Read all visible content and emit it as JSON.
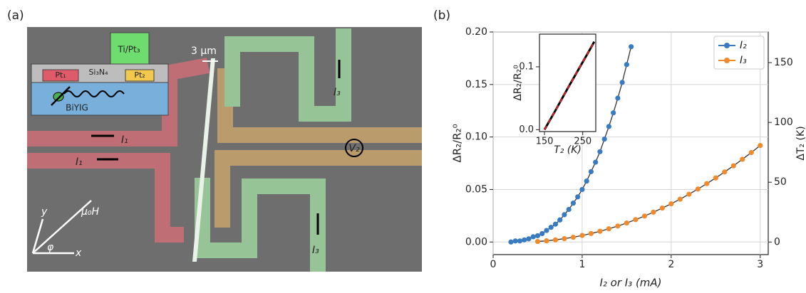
{
  "panel_a": {
    "label": "(a)",
    "labels": [
      "Ti/Pt₃",
      "3 µm",
      "Si₃N₄",
      "Pt₁",
      "Pt₂",
      "BiYIG",
      "I₁",
      "I₁",
      "I₃",
      "I₃",
      "V₂",
      "y",
      "x",
      "φ",
      "µ₀H"
    ]
  },
  "panel_b": {
    "label": "(b)"
  },
  "chart_data": [
    {
      "type": "scatter",
      "xlabel": "I₂ or I₃ (mA)",
      "ylabel": "ΔR₂/R₂⁰",
      "y2label": "ΔT₂ (K)",
      "xlim": [
        0,
        3.09
      ],
      "xticks": [
        0,
        1,
        2,
        3
      ],
      "ylim": [
        -0.012,
        0.2
      ],
      "yticks": [
        {
          "value": 0,
          "label": "0.00"
        },
        {
          "value": 0.05,
          "label": "0.05"
        },
        {
          "value": 0.1,
          "label": "0.10"
        },
        {
          "value": 0.15,
          "label": "0.15"
        },
        {
          "value": 0.2,
          "label": "0.20"
        }
      ],
      "y2lim": [
        -10.5,
        175.6
      ],
      "y2ticks": [
        0,
        50,
        100,
        150
      ],
      "grid": true,
      "legend": "upper right",
      "line_color": "#333333",
      "series": [
        {
          "name": "I₂",
          "color": "#3a7bbf",
          "x": [
            0.2,
            0.25,
            0.3,
            0.35,
            0.4,
            0.45,
            0.5,
            0.55,
            0.6,
            0.65,
            0.7,
            0.75,
            0.8,
            0.85,
            0.9,
            0.95,
            1.0,
            1.05,
            1.1,
            1.15,
            1.2,
            1.25,
            1.3,
            1.35,
            1.4,
            1.45,
            1.5,
            1.55
          ],
          "values": [
            0.0,
            0.001,
            0.001,
            0.002,
            0.003,
            0.005,
            0.006,
            0.008,
            0.011,
            0.014,
            0.017,
            0.021,
            0.026,
            0.031,
            0.037,
            0.043,
            0.05,
            0.058,
            0.067,
            0.076,
            0.086,
            0.098,
            0.11,
            0.123,
            0.137,
            0.152,
            0.169,
            0.186
          ]
        },
        {
          "name": "I₃",
          "color": "#f08a2c",
          "x": [
            0.5,
            0.6,
            0.7,
            0.8,
            0.9,
            1.0,
            1.1,
            1.2,
            1.3,
            1.4,
            1.5,
            1.6,
            1.7,
            1.8,
            1.9,
            2.0,
            2.1,
            2.2,
            2.3,
            2.4,
            2.5,
            2.6,
            2.7,
            2.8,
            2.9,
            3.0
          ],
          "values": [
            0.0005,
            0.0011,
            0.002,
            0.0032,
            0.0045,
            0.0062,
            0.0081,
            0.0102,
            0.0126,
            0.0152,
            0.0181,
            0.0213,
            0.0247,
            0.0284,
            0.0323,
            0.0364,
            0.0408,
            0.0455,
            0.0504,
            0.0556,
            0.061,
            0.0667,
            0.0726,
            0.0788,
            0.0852,
            0.0919
          ]
        }
      ]
    },
    {
      "type": "line",
      "xlabel": "T₂ (K)",
      "ylabel": "ΔR₂/R₂⁰",
      "xlim": [
        137,
        284
      ],
      "xticks": [
        150,
        250
      ],
      "ylim": [
        -0.003,
        0.152
      ],
      "yticks": [
        {
          "value": 0,
          "label": "0.0"
        },
        {
          "value": 0.1,
          "label": "0.1"
        }
      ],
      "grid": false,
      "series": [
        {
          "color": "#000000",
          "dash_color": "#d62728",
          "x": [
            150,
            180,
            210,
            240,
            270,
            280
          ],
          "values": [
            0,
            0.032,
            0.065,
            0.097,
            0.129,
            0.14
          ]
        }
      ]
    }
  ]
}
